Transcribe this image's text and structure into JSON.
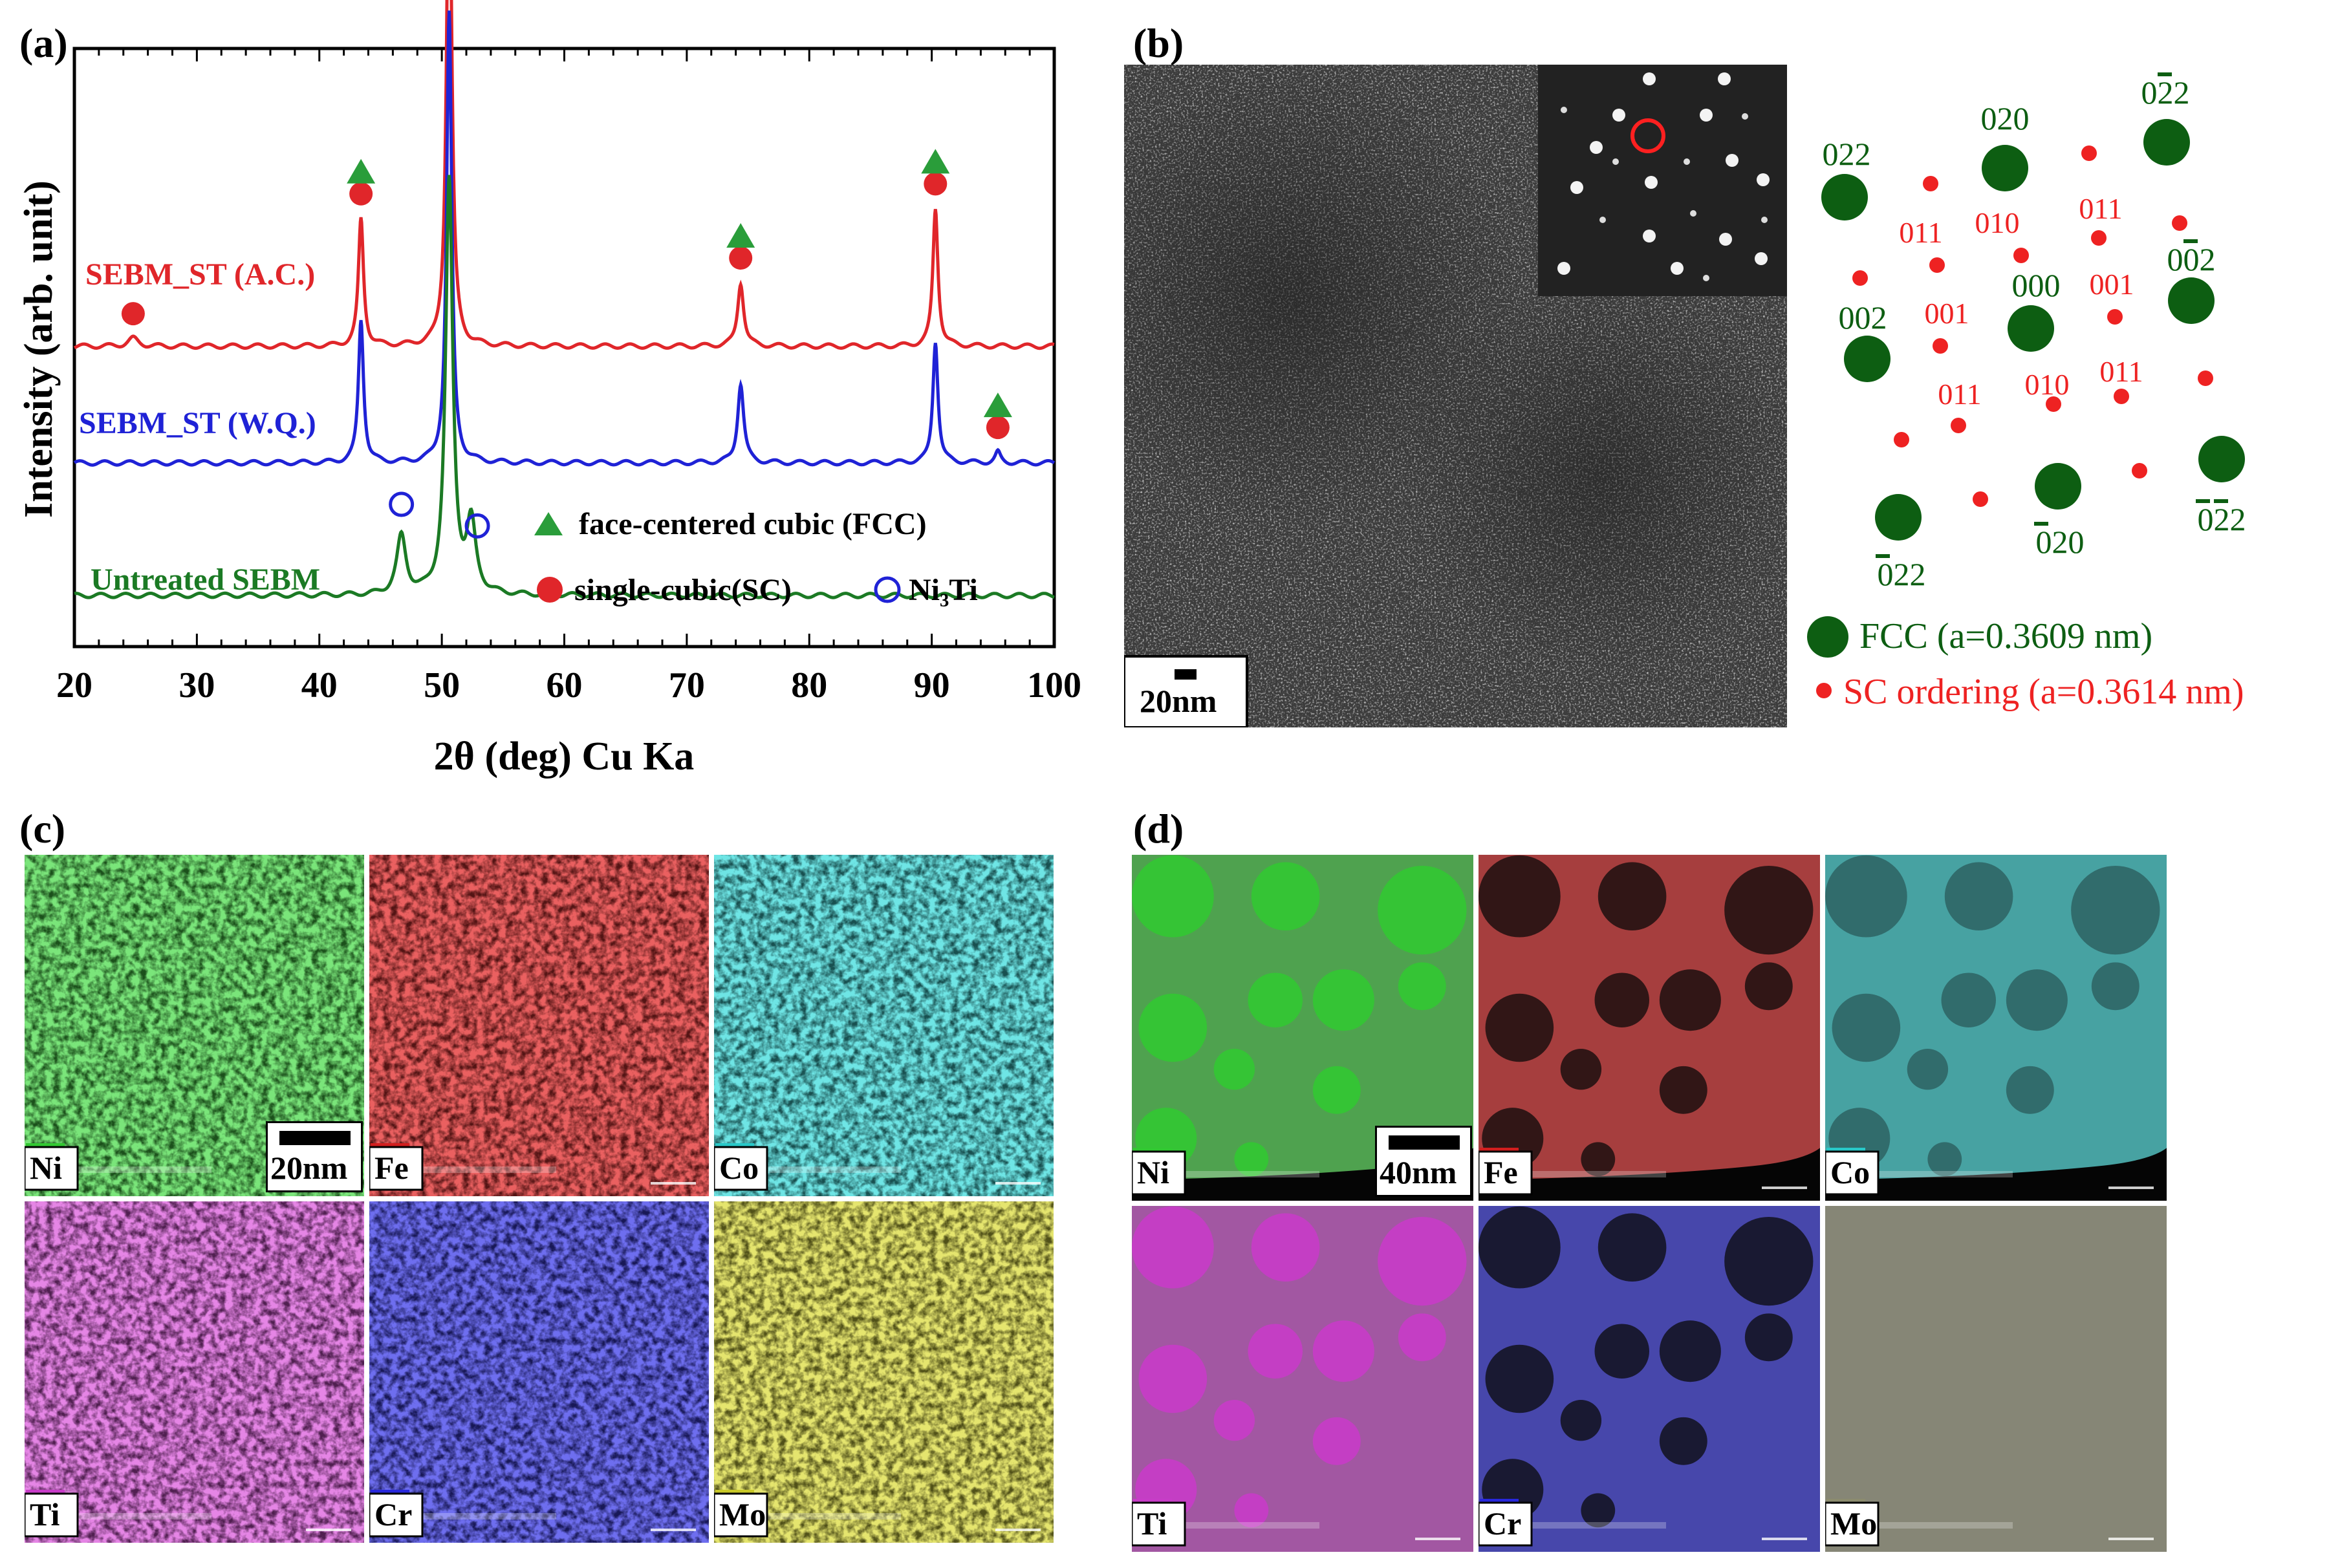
{
  "panel_labels": {
    "a": "(a)",
    "b": "(b)",
    "c": "(c)",
    "d": "(d)"
  },
  "colors": {
    "red": "#e0262a",
    "blue": "#1f22d6",
    "green": "#1b7a24",
    "marker_green": "#2a9d3a",
    "fcc_spot": "#0d5e12",
    "sc_spot": "#ee2222",
    "map_bg": "#1a1a1a"
  },
  "chart_data": {
    "type": "line",
    "title": "",
    "xlabel": "2θ (deg) Cu Ka",
    "ylabel": "Intensity (arb. unit)",
    "xlim": [
      20,
      100
    ],
    "xticks": [
      20,
      30,
      40,
      50,
      60,
      70,
      80,
      90,
      100
    ],
    "grid": false,
    "series": [
      {
        "name": "SEBM_ST (A.C.)",
        "color": "#e0262a",
        "baseline": 0.52,
        "peaks": [
          [
            24.8,
            0.015,
            0.5
          ],
          [
            43.4,
            0.24,
            0.25
          ],
          [
            50.6,
            1.0,
            0.25
          ],
          [
            74.4,
            0.12,
            0.3
          ],
          [
            90.3,
            0.26,
            0.25
          ]
        ]
      },
      {
        "name": "SEBM_ST (W.Q.)",
        "color": "#1f22d6",
        "baseline": 0.3,
        "peaks": [
          [
            43.4,
            0.27,
            0.25
          ],
          [
            50.6,
            0.85,
            0.25
          ],
          [
            74.4,
            0.15,
            0.3
          ],
          [
            90.3,
            0.23,
            0.25
          ],
          [
            95.4,
            0.02,
            0.25
          ]
        ]
      },
      {
        "name": "Untreated SEBM",
        "color": "#1b7a24",
        "baseline": 0.05,
        "peaks": [
          [
            46.7,
            0.11,
            0.45
          ],
          [
            50.6,
            0.78,
            0.35
          ],
          [
            52.4,
            0.13,
            0.45
          ]
        ]
      }
    ],
    "markers": {
      "fcc": [
        43.4,
        50.6,
        74.4,
        90.3,
        95.4
      ],
      "sc": [
        24.8,
        43.4,
        50.6,
        74.4,
        90.3,
        95.4
      ],
      "ni3ti": [
        46.7,
        52.9
      ]
    },
    "legend": [
      {
        "symbol": "triangle",
        "label": "face-centered cubic (FCC)"
      },
      {
        "symbol": "circle",
        "label": "single-cubic(SC)"
      },
      {
        "symbol": "ring",
        "label": "Ni₃Ti"
      }
    ]
  },
  "tem": {
    "scale_bar": "20nm",
    "fcc_spots": [
      {
        "label": "022",
        "bar": ""
      },
      {
        "label": "020",
        "bar": ""
      },
      {
        "label": "022",
        "bar": "2"
      },
      {
        "label": "002",
        "bar": ""
      },
      {
        "label": "000",
        "bar": ""
      },
      {
        "label": "002",
        "bar": "2"
      },
      {
        "label": "022",
        "bar": "1"
      },
      {
        "label": "020",
        "bar": "1"
      },
      {
        "label": "022",
        "bar": "12"
      }
    ],
    "sc_labels": [
      "011",
      "010",
      "011",
      "001",
      "001",
      "011",
      "010",
      "011"
    ],
    "legend": [
      {
        "label": "FCC (a=0.3609 nm)"
      },
      {
        "label": "SC ordering (a=0.3614 nm)"
      }
    ]
  },
  "eds_c": {
    "scale_bar": "20nm",
    "maps": [
      {
        "element": "Ni",
        "color": "#32c832"
      },
      {
        "element": "Fe",
        "color": "#d21e1e"
      },
      {
        "element": "Co",
        "color": "#28c8c8"
      },
      {
        "element": "Ti",
        "color": "#c83cc8"
      },
      {
        "element": "Cr",
        "color": "#2828dc"
      },
      {
        "element": "Mo",
        "color": "#c8c828"
      }
    ]
  },
  "eds_d": {
    "scale_bar": "40nm",
    "maps": [
      {
        "element": "Ni",
        "color": "#32c832"
      },
      {
        "element": "Fe",
        "color": "#d21e1e"
      },
      {
        "element": "Co",
        "color": "#28c8c8"
      },
      {
        "element": "Ti",
        "color": "#c83cc8"
      },
      {
        "element": "Cr",
        "color": "#2828dc"
      },
      {
        "element": "Mo",
        "color": "#8c8c6e"
      }
    ]
  }
}
